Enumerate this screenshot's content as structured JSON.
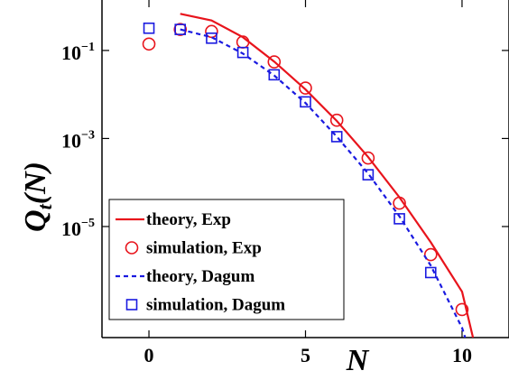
{
  "chart_data": {
    "type": "line",
    "x_scale": "linear",
    "y_scale": "log",
    "xlim": [
      -1.5,
      11.5
    ],
    "ylim": [
      3e-08,
      1.4
    ],
    "grid": false,
    "legend_position": "bottom-left",
    "xlabel": "N",
    "ylabel": {
      "main": "Q",
      "subscript": "t",
      "suffix": "(N)"
    },
    "x_ticks": [
      {
        "value": 0,
        "label": "0"
      },
      {
        "value": 5,
        "label": "5"
      },
      {
        "value": 10,
        "label": "10"
      }
    ],
    "y_ticks": [
      {
        "value": 0.1,
        "base": "10",
        "exp": "−1"
      },
      {
        "value": 0.001,
        "base": "10",
        "exp": "−3"
      },
      {
        "value": 1e-05,
        "base": "10",
        "exp": "−5"
      }
    ],
    "series": [
      {
        "name": "theory, Exp",
        "kind": "line",
        "color": "#e8141c",
        "dash": "solid",
        "x": [
          1,
          2,
          3,
          4,
          5,
          6,
          7,
          8,
          9,
          10,
          10.35
        ],
        "y": [
          0.68,
          0.48,
          0.2,
          0.056,
          0.013,
          0.0025,
          0.00038,
          4.6e-05,
          4.4e-06,
          3.3e-07,
          3e-08
        ]
      },
      {
        "name": "simulation, Exp",
        "kind": "marker",
        "marker": "circle",
        "color": "#e8141c",
        "x": [
          0,
          1,
          2,
          3,
          4,
          5,
          6,
          7,
          8,
          9,
          10
        ],
        "y": [
          0.14,
          0.3,
          0.27,
          0.155,
          0.055,
          0.014,
          0.0026,
          0.00036,
          3.4e-05,
          2.3e-06,
          1.3e-07
        ]
      },
      {
        "name": "theory, Dagum",
        "kind": "line",
        "color": "#1a1ae0",
        "dash": "dashed",
        "x": [
          1,
          2,
          3,
          4,
          5,
          6,
          7,
          8,
          9,
          10,
          10.1
        ],
        "y": [
          0.3,
          0.2,
          0.085,
          0.027,
          0.0064,
          0.0011,
          0.00016,
          1.7e-05,
          1.3e-06,
          5e-08,
          3e-08
        ]
      },
      {
        "name": "simulation, Dagum",
        "kind": "marker",
        "marker": "square",
        "color": "#1a1ae0",
        "x": [
          0,
          1,
          2,
          3,
          4,
          5,
          6,
          7,
          8,
          9
        ],
        "y": [
          0.32,
          0.3,
          0.19,
          0.09,
          0.028,
          0.0068,
          0.0011,
          0.00015,
          1.5e-05,
          9e-07
        ]
      }
    ]
  }
}
